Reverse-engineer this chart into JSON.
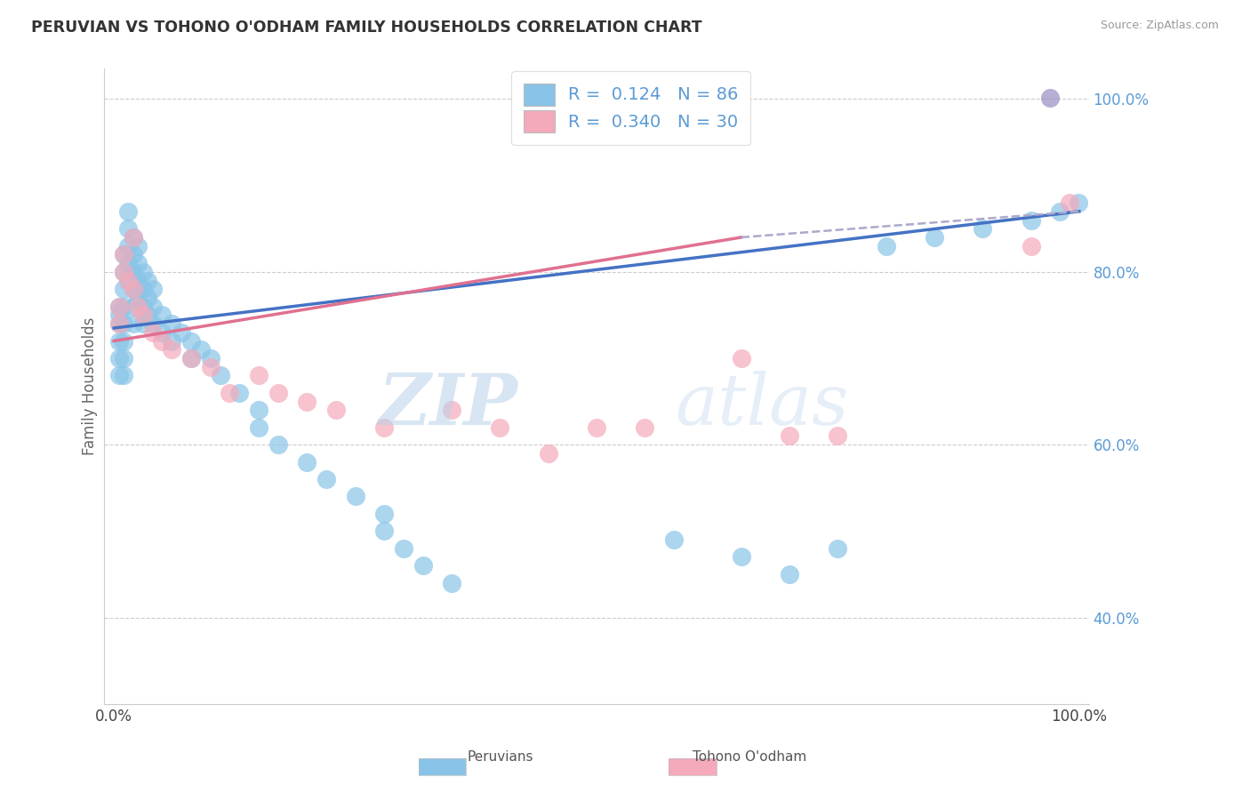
{
  "title": "PERUVIAN VS TOHONO O'ODHAM FAMILY HOUSEHOLDS CORRELATION CHART",
  "source": "Source: ZipAtlas.com",
  "ylabel": "Family Households",
  "legend_label1": "Peruvians",
  "legend_label2": "Tohono O'odham",
  "watermark_zip": "ZIP",
  "watermark_atlas": "atlas",
  "color_blue": "#89C4E8",
  "color_pink": "#F4AABB",
  "color_purple": "#9B8EC4",
  "line_blue": "#4472C4",
  "line_pink": "#E07090",
  "line_dash": "#AAAACC",
  "ytick_color": "#5B9BD5",
  "peruvian_x": [
    0.005,
    0.005,
    0.005,
    0.005,
    0.005,
    0.005,
    0.01,
    0.01,
    0.01,
    0.01,
    0.01,
    0.01,
    0.01,
    0.01,
    0.015,
    0.015,
    0.015,
    0.015,
    0.015,
    0.02,
    0.02,
    0.02,
    0.02,
    0.02,
    0.02,
    0.025,
    0.025,
    0.025,
    0.025,
    0.03,
    0.03,
    0.03,
    0.03,
    0.035,
    0.035,
    0.035,
    0.04,
    0.04,
    0.04,
    0.05,
    0.05,
    0.06,
    0.06,
    0.07,
    0.08,
    0.08,
    0.09,
    0.1,
    0.11,
    0.13,
    0.15,
    0.15,
    0.17,
    0.2,
    0.22,
    0.25,
    0.28,
    0.28,
    0.3,
    0.32,
    0.35,
    0.58,
    0.65,
    0.7,
    0.75,
    0.8,
    0.85,
    0.9,
    0.95,
    0.98,
    0.999
  ],
  "peruvian_y": [
    0.74,
    0.72,
    0.7,
    0.68,
    0.75,
    0.76,
    0.82,
    0.8,
    0.78,
    0.76,
    0.74,
    0.72,
    0.7,
    0.68,
    0.87,
    0.85,
    0.83,
    0.81,
    0.79,
    0.84,
    0.82,
    0.8,
    0.78,
    0.76,
    0.74,
    0.83,
    0.81,
    0.79,
    0.77,
    0.8,
    0.78,
    0.76,
    0.74,
    0.79,
    0.77,
    0.75,
    0.78,
    0.76,
    0.74,
    0.75,
    0.73,
    0.74,
    0.72,
    0.73,
    0.72,
    0.7,
    0.71,
    0.7,
    0.68,
    0.66,
    0.64,
    0.62,
    0.6,
    0.58,
    0.56,
    0.54,
    0.52,
    0.5,
    0.48,
    0.46,
    0.44,
    0.49,
    0.47,
    0.45,
    0.48,
    0.83,
    0.84,
    0.85,
    0.86,
    0.87,
    0.88
  ],
  "todham_x": [
    0.005,
    0.005,
    0.01,
    0.01,
    0.015,
    0.02,
    0.02,
    0.025,
    0.03,
    0.04,
    0.05,
    0.06,
    0.08,
    0.1,
    0.12,
    0.15,
    0.17,
    0.2,
    0.23,
    0.28,
    0.35,
    0.4,
    0.45,
    0.5,
    0.55,
    0.65,
    0.7,
    0.75,
    0.95,
    0.99
  ],
  "todham_y": [
    0.76,
    0.74,
    0.82,
    0.8,
    0.79,
    0.84,
    0.78,
    0.76,
    0.75,
    0.73,
    0.72,
    0.71,
    0.7,
    0.69,
    0.66,
    0.68,
    0.66,
    0.65,
    0.64,
    0.62,
    0.64,
    0.62,
    0.59,
    0.62,
    0.62,
    0.7,
    0.61,
    0.61,
    0.83,
    0.88
  ],
  "blue_line_x0": 0.0,
  "blue_line_y0": 0.735,
  "blue_line_x1": 1.0,
  "blue_line_y1": 0.87,
  "pink_line_x0": 0.0,
  "pink_line_y0": 0.72,
  "pink_line_x1": 0.65,
  "pink_line_y1": 0.84,
  "dash_line_x0": 0.65,
  "dash_line_y0": 0.84,
  "dash_line_x1": 1.0,
  "dash_line_y1": 0.87,
  "xlim_min": -0.01,
  "xlim_max": 1.01,
  "ylim_min": 0.3,
  "ylim_max": 1.035,
  "yticks": [
    0.4,
    0.6,
    0.8,
    1.0
  ],
  "ytick_labels": [
    "40.0%",
    "60.0%",
    "80.0%",
    "100.0%"
  ]
}
